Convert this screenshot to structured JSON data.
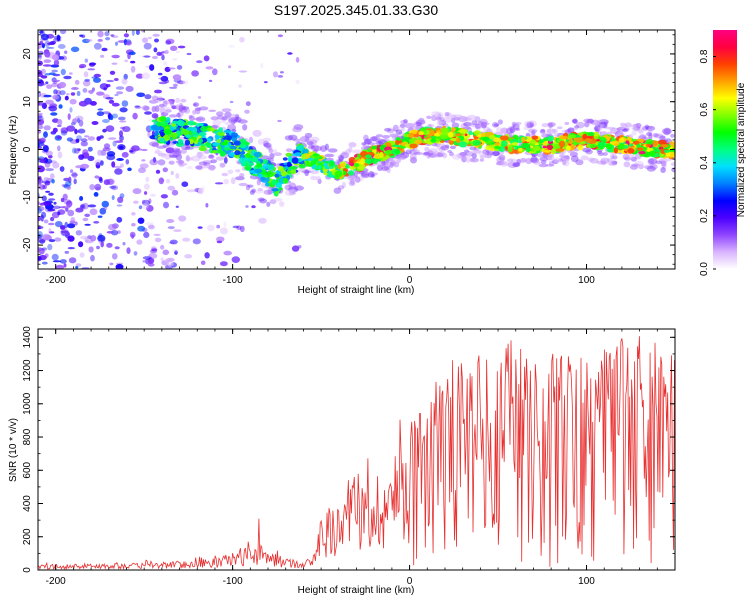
{
  "title": "S197.2025.345.01.33.G30",
  "chart_data": [
    {
      "type": "heatmap",
      "title": "S197.2025.345.01.33.G30",
      "xlabel": "Height of straight line (km)",
      "ylabel": "Frequency (Hz)",
      "xlim": [
        -210,
        150
      ],
      "ylim": [
        -25,
        25
      ],
      "x_ticks": [
        -200,
        -100,
        0,
        100
      ],
      "y_ticks": [
        -20,
        -10,
        0,
        10,
        20
      ],
      "colorbar": {
        "label": "Normalized spectral amplitude",
        "range": [
          0.0,
          0.9
        ],
        "ticks": [
          0.0,
          0.2,
          0.4,
          0.6,
          0.8
        ],
        "colors": [
          "#ffffff",
          "#d9b3ff",
          "#8f45ff",
          "#4b00ff",
          "#0000ff",
          "#0080ff",
          "#00e0ff",
          "#00ff80",
          "#00ff00",
          "#80ff00",
          "#ffff00",
          "#ffa000",
          "#ff4000",
          "#ff0040",
          "#ff0080"
        ]
      },
      "ridge": {
        "x": [
          -140,
          -120,
          -100,
          -90,
          -80,
          -75,
          -70,
          -60,
          -50,
          -40,
          -30,
          -20,
          -10,
          0,
          10,
          20,
          40,
          60,
          80,
          100,
          120,
          140,
          150
        ],
        "freq_hz": [
          4,
          3,
          1,
          -2,
          -5,
          -7,
          -4,
          -1,
          -3,
          -5,
          -3,
          -1,
          0,
          2,
          3,
          3,
          2,
          1,
          1,
          2,
          1,
          0,
          0
        ]
      }
    },
    {
      "type": "line",
      "xlabel": "Height of straight line (km)",
      "ylabel": "SNR (10 * v/v)",
      "xlim": [
        -210,
        150
      ],
      "ylim": [
        0,
        1450
      ],
      "x_ticks": [
        -200,
        -100,
        0,
        100
      ],
      "y_ticks": [
        0,
        200,
        400,
        600,
        800,
        1000,
        1200,
        1400
      ],
      "series": [
        {
          "name": "SNR",
          "color": "#e83030",
          "envelope": {
            "x": [
              -210,
              -150,
              -110,
              -95,
              -85,
              -70,
              -55,
              -50,
              -40,
              -30,
              -20,
              -10,
              0,
              20,
              40,
              60,
              80,
              100,
              120,
              150
            ],
            "typical": [
              20,
              25,
              40,
              80,
              90,
              40,
              40,
              200,
              250,
              280,
              350,
              400,
              500,
              600,
              700,
              700,
              650,
              650,
              650,
              600
            ],
            "peak": [
              40,
              60,
              90,
              200,
              330,
              80,
              80,
              360,
              470,
              600,
              860,
              900,
              950,
              1260,
              1300,
              1400,
              1310,
              1280,
              1440,
              1340
            ]
          }
        }
      ]
    }
  ]
}
